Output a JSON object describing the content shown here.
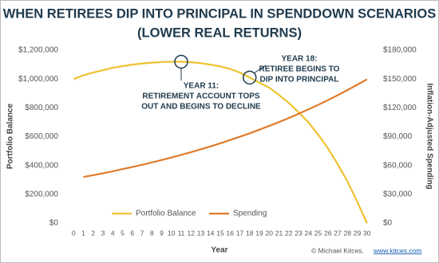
{
  "chart_data": {
    "type": "line",
    "title": [
      "WHEN RETIREES DIP INTO PRINCIPAL IN SPENDDOWN SCENARIOS",
      "(LOWER REAL RETURNS)"
    ],
    "x_label": "Year",
    "y_label": "Portfolio Balance",
    "y2_label": "Inflation-Adjusted Spending",
    "x": [
      0,
      1,
      2,
      3,
      4,
      5,
      6,
      7,
      8,
      9,
      10,
      11,
      12,
      13,
      14,
      15,
      16,
      17,
      18,
      19,
      20,
      21,
      22,
      23,
      24,
      25,
      26,
      27,
      28,
      29,
      30
    ],
    "xlim": [
      -1,
      31
    ],
    "xticks": [
      0,
      1,
      2,
      3,
      4,
      5,
      6,
      7,
      8,
      9,
      10,
      11,
      12,
      13,
      14,
      15,
      16,
      17,
      18,
      19,
      20,
      21,
      22,
      23,
      24,
      25,
      26,
      27,
      28,
      29,
      30
    ],
    "ylim": [
      0,
      1200000
    ],
    "yticks": [
      {
        "value": 0,
        "label": "$0"
      },
      {
        "value": 200000,
        "label": "$200,000"
      },
      {
        "value": 400000,
        "label": "$400,000"
      },
      {
        "value": 600000,
        "label": "$600,000"
      },
      {
        "value": 800000,
        "label": "$800,000"
      },
      {
        "value": 1000000,
        "label": "$1,000,000"
      },
      {
        "value": 1200000,
        "label": "$1,200,000"
      }
    ],
    "y2lim": [
      0,
      180000
    ],
    "y2ticks": [
      {
        "value": 0,
        "label": "$0"
      },
      {
        "value": 30000,
        "label": "$30,000"
      },
      {
        "value": 60000,
        "label": "$60,000"
      },
      {
        "value": 90000,
        "label": "$90,000"
      },
      {
        "value": 120000,
        "label": "$120,000"
      },
      {
        "value": 150000,
        "label": "$150,000"
      },
      {
        "value": 180000,
        "label": "$180,000"
      }
    ],
    "series": [
      {
        "name": "Portfolio Balance",
        "color": "#eec232",
        "values": [
          1000000,
          1025000,
          1045000,
          1062000,
          1078000,
          1090000,
          1100000,
          1108000,
          1114000,
          1118000,
          1120000,
          1120000,
          1117000,
          1110000,
          1100000,
          1088000,
          1070000,
          1045000,
          1010000,
          975000,
          940000,
          890000,
          835000,
          770000,
          700000,
          615000,
          520000,
          410000,
          290000,
          150000,
          0
        ]
      },
      {
        "name": "Spending",
        "color": "#e07b2a",
        "axis": "y2",
        "values": [
          null,
          48000,
          49900,
          51900,
          54000,
          56200,
          58400,
          60700,
          63200,
          65700,
          68300,
          71100,
          73900,
          76900,
          79900,
          83100,
          86500,
          89900,
          93500,
          97300,
          101200,
          105200,
          109400,
          113800,
          118400,
          123100,
          128000,
          133100,
          138500,
          144000,
          149700
        ]
      }
    ],
    "annotations": [
      {
        "x": 11,
        "lines": [
          "YEAR 11:",
          "RETIREMENT ACCOUNT TOPS",
          "OUT AND BEGINS TO DECLINE"
        ]
      },
      {
        "x": 18,
        "lines": [
          "YEAR 18:",
          "RETIREE BEGINS TO",
          "DIP INTO PRINCIPAL"
        ]
      }
    ],
    "credit": {
      "text": "© Michael Kitces,",
      "link": "www.kitces.com"
    }
  }
}
